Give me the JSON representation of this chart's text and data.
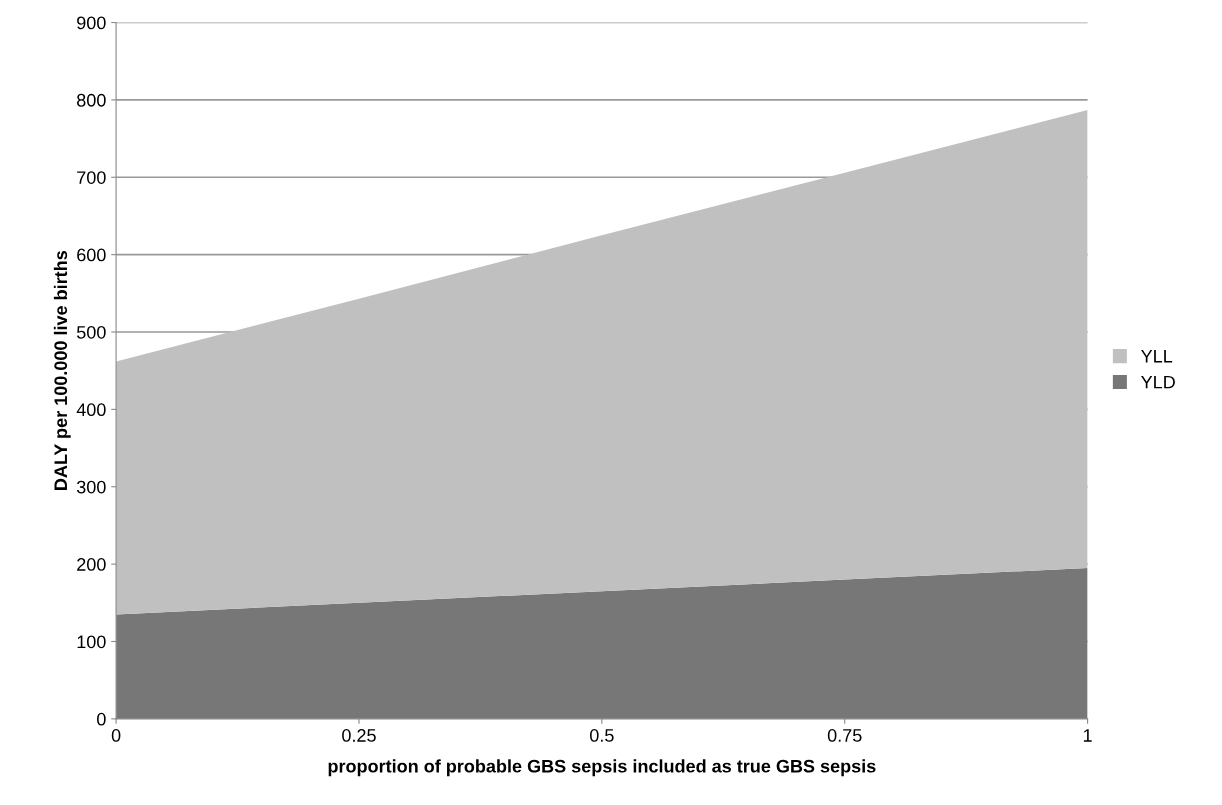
{
  "chart_data": {
    "type": "area",
    "stacked": true,
    "xlabel": "proportion of probable GBS sepsis included as true GBS sepsis",
    "ylabel": "DALY per 100.000 live births",
    "x": [
      0,
      0.25,
      0.5,
      0.75,
      1
    ],
    "series": [
      {
        "name": "YLD",
        "color": "#777777",
        "values": [
          135,
          150,
          165,
          180,
          195
        ]
      },
      {
        "name": "YLL",
        "color": "#c0c0c0",
        "values": [
          327,
          393,
          460,
          526,
          592
        ]
      }
    ],
    "xlim": [
      0,
      1
    ],
    "xticks": [
      0,
      0.25,
      0.5,
      0.75,
      1
    ],
    "ylim": [
      0,
      900
    ],
    "yticks": [
      0,
      100,
      200,
      300,
      400,
      500,
      600,
      700,
      800,
      900
    ],
    "grid": "y",
    "legend": "right"
  }
}
